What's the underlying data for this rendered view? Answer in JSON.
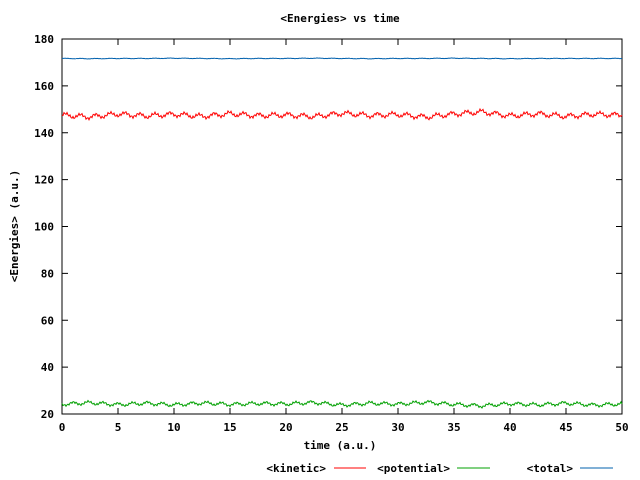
{
  "chart_data": {
    "type": "line",
    "title": "<Energies> vs time",
    "xlabel": "time (a.u.)",
    "ylabel": "<Energies> (a.u.)",
    "xlim": [
      0,
      50
    ],
    "ylim": [
      20,
      180
    ],
    "xticks": [
      "0",
      "5",
      "10",
      "15",
      "20",
      "25",
      "30",
      "35",
      "40",
      "45",
      "50"
    ],
    "yticks": [
      "20",
      "40",
      "60",
      "80",
      "100",
      "120",
      "140",
      "160",
      "180"
    ],
    "grid": false,
    "legend_position": "bottom",
    "series": [
      {
        "name": "<kinetic>",
        "color": "#ff0000",
        "x": [
          0,
          2.5,
          5,
          7.5,
          10,
          12.5,
          15,
          17.5,
          20,
          22.5,
          25,
          27.5,
          30,
          32.5,
          35,
          37.5,
          40,
          42.5,
          45,
          47.5,
          50
        ],
        "y": [
          147.5,
          146.8,
          148.0,
          147.2,
          147.9,
          147.0,
          148.1,
          147.3,
          147.6,
          146.9,
          148.3,
          147.4,
          147.8,
          146.7,
          148.0,
          148.9,
          147.2,
          148.1,
          147.0,
          147.9,
          147.5
        ]
      },
      {
        "name": "<potential>",
        "color": "#00a000",
        "x": [
          0,
          2.5,
          5,
          7.5,
          10,
          12.5,
          15,
          17.5,
          20,
          22.5,
          25,
          27.5,
          30,
          32.5,
          35,
          37.5,
          40,
          42.5,
          45,
          47.5,
          50
        ],
        "y": [
          24.2,
          24.8,
          24.0,
          24.6,
          23.9,
          24.7,
          24.1,
          24.5,
          24.3,
          24.9,
          23.8,
          24.6,
          24.2,
          25.0,
          24.1,
          23.5,
          24.4,
          23.9,
          24.6,
          23.8,
          24.3
        ]
      },
      {
        "name": "<total>",
        "color": "#0060ad",
        "x": [
          0,
          2.5,
          5,
          7.5,
          10,
          12.5,
          15,
          17.5,
          20,
          22.5,
          25,
          27.5,
          30,
          32.5,
          35,
          37.5,
          40,
          42.5,
          45,
          47.5,
          50
        ],
        "y": [
          171.7,
          171.6,
          171.7,
          171.7,
          171.8,
          171.7,
          171.6,
          171.7,
          171.7,
          171.8,
          171.7,
          171.6,
          171.7,
          171.7,
          171.8,
          171.7,
          171.6,
          171.7,
          171.7,
          171.7,
          171.7
        ]
      }
    ]
  }
}
